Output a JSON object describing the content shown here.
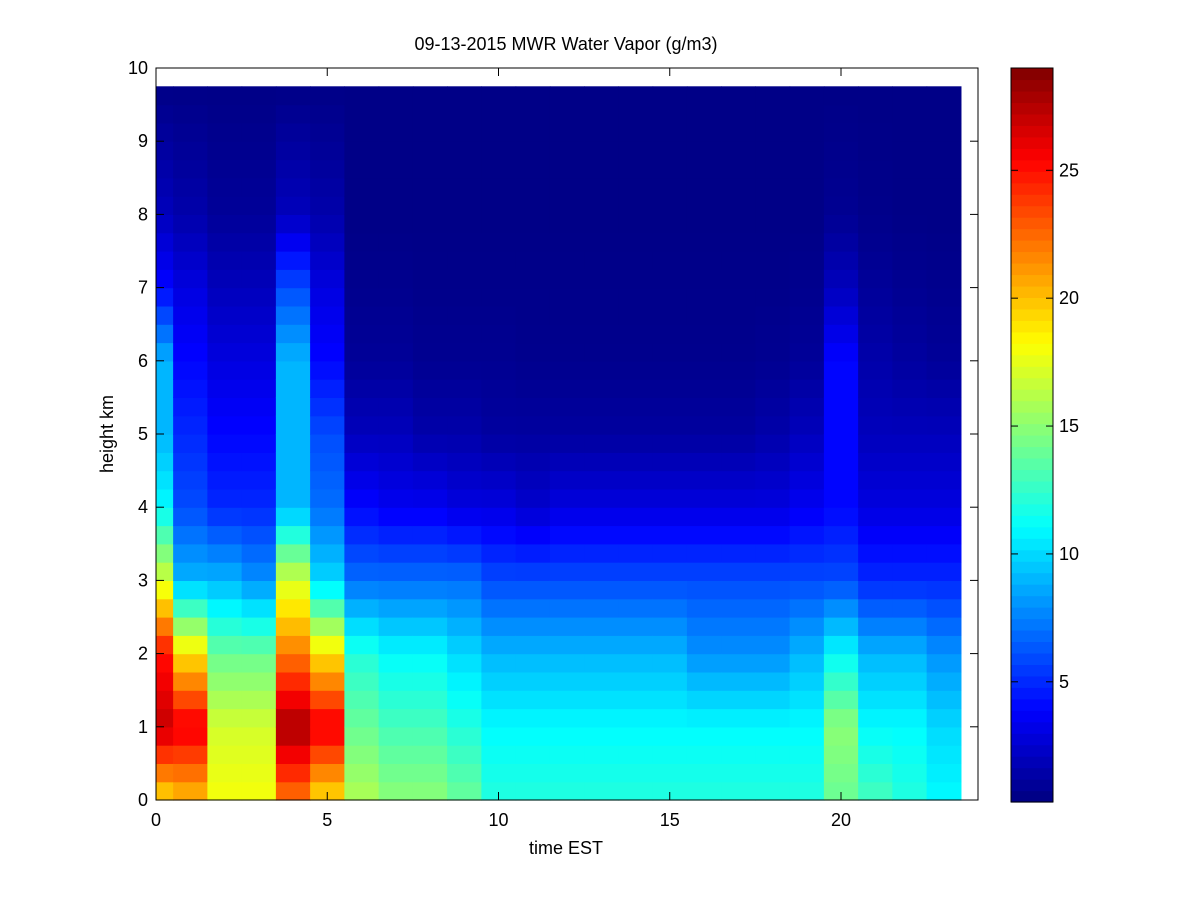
{
  "chart_data": {
    "type": "heatmap",
    "title": "09-13-2015 MWR Water Vapor (g/m3)",
    "xlabel": "time EST",
    "ylabel": "height km",
    "xlim": [
      0,
      24
    ],
    "ylim": [
      0,
      10
    ],
    "x_ticks": [
      "0",
      "5",
      "10",
      "15",
      "20"
    ],
    "y_ticks": [
      "0",
      "1",
      "2",
      "3",
      "4",
      "5",
      "6",
      "7",
      "8",
      "9",
      "10"
    ],
    "colorbar": {
      "colormap": "jet",
      "range": [
        0.3,
        29
      ],
      "ticks": [
        "5",
        "10",
        "15",
        "20",
        "25"
      ]
    },
    "time_hours": [
      0,
      1,
      2,
      3,
      4,
      5,
      6,
      7,
      8,
      9,
      10,
      11,
      12,
      13,
      14,
      15,
      16,
      17,
      18,
      19,
      20,
      21,
      22,
      23
    ],
    "height_max_km": 9.75,
    "height_layers_km": [
      0,
      1,
      2,
      3,
      4,
      5,
      6,
      7,
      8,
      9.75
    ],
    "profile_value_units": "g/m3",
    "profiles": [
      {
        "time": 0,
        "values": [
          19,
          27,
          25,
          17,
          11,
          9,
          9,
          4,
          2,
          0.5
        ]
      },
      {
        "time": 1,
        "values": [
          20,
          26,
          19,
          9,
          6,
          5,
          4,
          3,
          1.5,
          0.5
        ]
      },
      {
        "time": 2,
        "values": [
          18,
          17,
          14,
          9,
          5,
          4,
          3,
          2,
          1,
          0.5
        ]
      },
      {
        "time": 3,
        "values": [
          18,
          17,
          14,
          8,
          5,
          4,
          3,
          2,
          1,
          0.5
        ]
      },
      {
        "time": 4,
        "values": [
          22,
          28,
          22,
          17,
          9,
          9,
          9,
          6,
          2,
          0.5
        ]
      },
      {
        "time": 5,
        "values": [
          19,
          26,
          19,
          10,
          7,
          6,
          4,
          3,
          1.5,
          0.5
        ]
      },
      {
        "time": 6,
        "values": [
          16,
          14,
          12,
          7,
          4,
          2,
          1,
          0.7,
          0.5,
          0.5
        ]
      },
      {
        "time": 7,
        "values": [
          15,
          13,
          11,
          7,
          3.5,
          2,
          1,
          0.7,
          0.5,
          0.5
        ]
      },
      {
        "time": 8,
        "values": [
          15,
          13,
          11,
          7,
          3.5,
          1.5,
          0.8,
          0.6,
          0.5,
          0.5
        ]
      },
      {
        "time": 9,
        "values": [
          14,
          12,
          10,
          7,
          3,
          1.5,
          0.8,
          0.6,
          0.5,
          0.5
        ]
      },
      {
        "time": 10,
        "values": [
          12,
          11,
          9,
          6,
          3,
          1.2,
          0.8,
          0.6,
          0.5,
          0.5
        ]
      },
      {
        "time": 11,
        "values": [
          12,
          11,
          9,
          6,
          2.5,
          1.2,
          0.7,
          0.6,
          0.5,
          0.5
        ]
      },
      {
        "time": 12,
        "values": [
          12,
          11,
          9,
          6,
          3,
          1.2,
          0.7,
          0.6,
          0.5,
          0.5
        ]
      },
      {
        "time": 13,
        "values": [
          12,
          11,
          9,
          6,
          3,
          1.2,
          0.7,
          0.6,
          0.5,
          0.5
        ]
      },
      {
        "time": 14,
        "values": [
          12,
          11,
          9,
          6,
          3,
          1.2,
          0.7,
          0.6,
          0.5,
          0.5
        ]
      },
      {
        "time": 15,
        "values": [
          12,
          11,
          9,
          6,
          3,
          1.2,
          0.7,
          0.6,
          0.5,
          0.5
        ]
      },
      {
        "time": 16,
        "values": [
          12,
          11,
          8,
          6,
          3,
          1.2,
          0.7,
          0.6,
          0.5,
          0.5
        ]
      },
      {
        "time": 17,
        "values": [
          12,
          11,
          8,
          6,
          3,
          1.2,
          0.7,
          0.6,
          0.5,
          0.5
        ]
      },
      {
        "time": 18,
        "values": [
          12,
          11,
          8,
          6,
          3,
          1.5,
          0.8,
          0.6,
          0.5,
          0.5
        ]
      },
      {
        "time": 19,
        "values": [
          12,
          11,
          9,
          6,
          3.5,
          2,
          1,
          0.7,
          0.5,
          0.5
        ]
      },
      {
        "time": 20,
        "values": [
          14,
          15,
          11,
          6,
          4,
          4,
          4,
          2,
          0.8,
          0.5
        ]
      },
      {
        "time": 21,
        "values": [
          13,
          11,
          9,
          5,
          3,
          2,
          1.5,
          1,
          0.6,
          0.5
        ]
      },
      {
        "time": 22,
        "values": [
          12,
          11,
          9,
          5,
          3,
          2,
          1.2,
          0.8,
          0.5,
          0.5
        ]
      },
      {
        "time": 23,
        "values": [
          11,
          10,
          8,
          5,
          3,
          2,
          1,
          0.7,
          0.5,
          0.5
        ]
      }
    ],
    "grid": false
  }
}
